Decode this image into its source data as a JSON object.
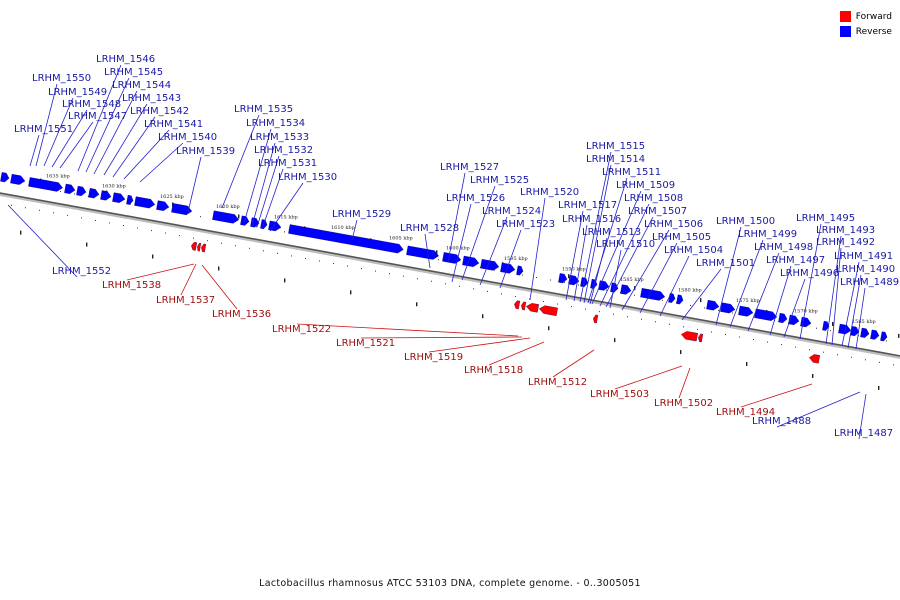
{
  "legend": {
    "forward": {
      "label": "Forward",
      "color": "#ff0000"
    },
    "reverse": {
      "label": "Reverse",
      "color": "#0000ff"
    }
  },
  "caption": "Lactobacillus rhamnosus ATCC 53103 DNA, complete genome. - 0..3005051",
  "scale_labels": [
    "1635 kbp",
    "1630 kbp",
    "1625 kbp",
    "1620 kbp",
    "1615 kbp",
    "1610 kbp",
    "1605 kbp",
    "1600 kbp",
    "1595 kbp",
    "1590 kbp",
    "1585 kbp",
    "1580 kbp",
    "1575 kbp",
    "1570 kbp",
    "1565 kbp"
  ],
  "reverse_genes": [
    "LRHM_1551",
    "LRHM_1550",
    "LRHM_1549",
    "LRHM_1548",
    "LRHM_1547",
    "LRHM_1546",
    "LRHM_1545",
    "LRHM_1544",
    "LRHM_1543",
    "LRHM_1542",
    "LRHM_1541",
    "LRHM_1540",
    "LRHM_1539",
    "LRHM_1552",
    "LRHM_1535",
    "LRHM_1534",
    "LRHM_1533",
    "LRHM_1532",
    "LRHM_1531",
    "LRHM_1530",
    "LRHM_1529",
    "LRHM_1528",
    "LRHM_1527",
    "LRHM_1526",
    "LRHM_1525",
    "LRHM_1524",
    "LRHM_1523",
    "LRHM_1520",
    "LRHM_1517",
    "LRHM_1516",
    "LRHM_1515",
    "LRHM_1514",
    "LRHM_1513",
    "LRHM_1511",
    "LRHM_1510",
    "LRHM_1509",
    "LRHM_1508",
    "LRHM_1507",
    "LRHM_1506",
    "LRHM_1505",
    "LRHM_1504",
    "LRHM_1501",
    "LRHM_1500",
    "LRHM_1499",
    "LRHM_1498",
    "LRHM_1497",
    "LRHM_1496",
    "LRHM_1495",
    "LRHM_1493",
    "LRHM_1492",
    "LRHM_1491",
    "LRHM_1490",
    "LRHM_1489",
    "LRHM_1488",
    "LRHM_1487"
  ],
  "forward_genes": [
    "LRHM_1538",
    "LRHM_1537",
    "LRHM_1536",
    "LRHM_1522",
    "LRHM_1521",
    "LRHM_1519",
    "LRHM_1518",
    "LRHM_1512",
    "LRHM_1503",
    "LRHM_1502",
    "LRHM_1494"
  ]
}
